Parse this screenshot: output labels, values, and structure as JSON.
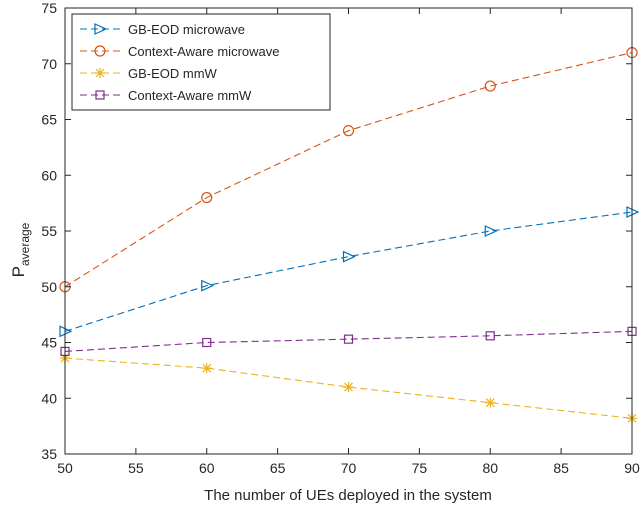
{
  "chart_data": {
    "type": "line",
    "xlabel": "The number of UEs deployed in the system",
    "ylabel": "P",
    "ylabel_sub": "average",
    "xlim": [
      50,
      90
    ],
    "ylim": [
      35,
      75
    ],
    "x_ticks": [
      50,
      55,
      60,
      65,
      70,
      75,
      80,
      85,
      90
    ],
    "y_ticks": [
      35,
      40,
      45,
      50,
      55,
      60,
      65,
      70,
      75
    ],
    "grid": false,
    "legend_position": "top-left",
    "x": [
      50,
      60,
      70,
      80,
      90
    ],
    "series": [
      {
        "name": "GB-EOD microwave",
        "color": "#0072BD",
        "marker": "triangle-right",
        "values": [
          46.0,
          50.1,
          52.7,
          55.0,
          56.7
        ]
      },
      {
        "name": "Context-Aware microwave",
        "color": "#D95319",
        "marker": "circle",
        "values": [
          50.0,
          58.0,
          64.0,
          68.0,
          71.0
        ]
      },
      {
        "name": "GB-EOD mmW",
        "color": "#EDB120",
        "marker": "asterisk",
        "values": [
          43.6,
          42.7,
          41.0,
          39.6,
          38.2
        ]
      },
      {
        "name": "Context-Aware mmW",
        "color": "#7E2F8E",
        "marker": "square",
        "values": [
          44.2,
          45.0,
          45.3,
          45.6,
          46.0
        ]
      }
    ]
  }
}
